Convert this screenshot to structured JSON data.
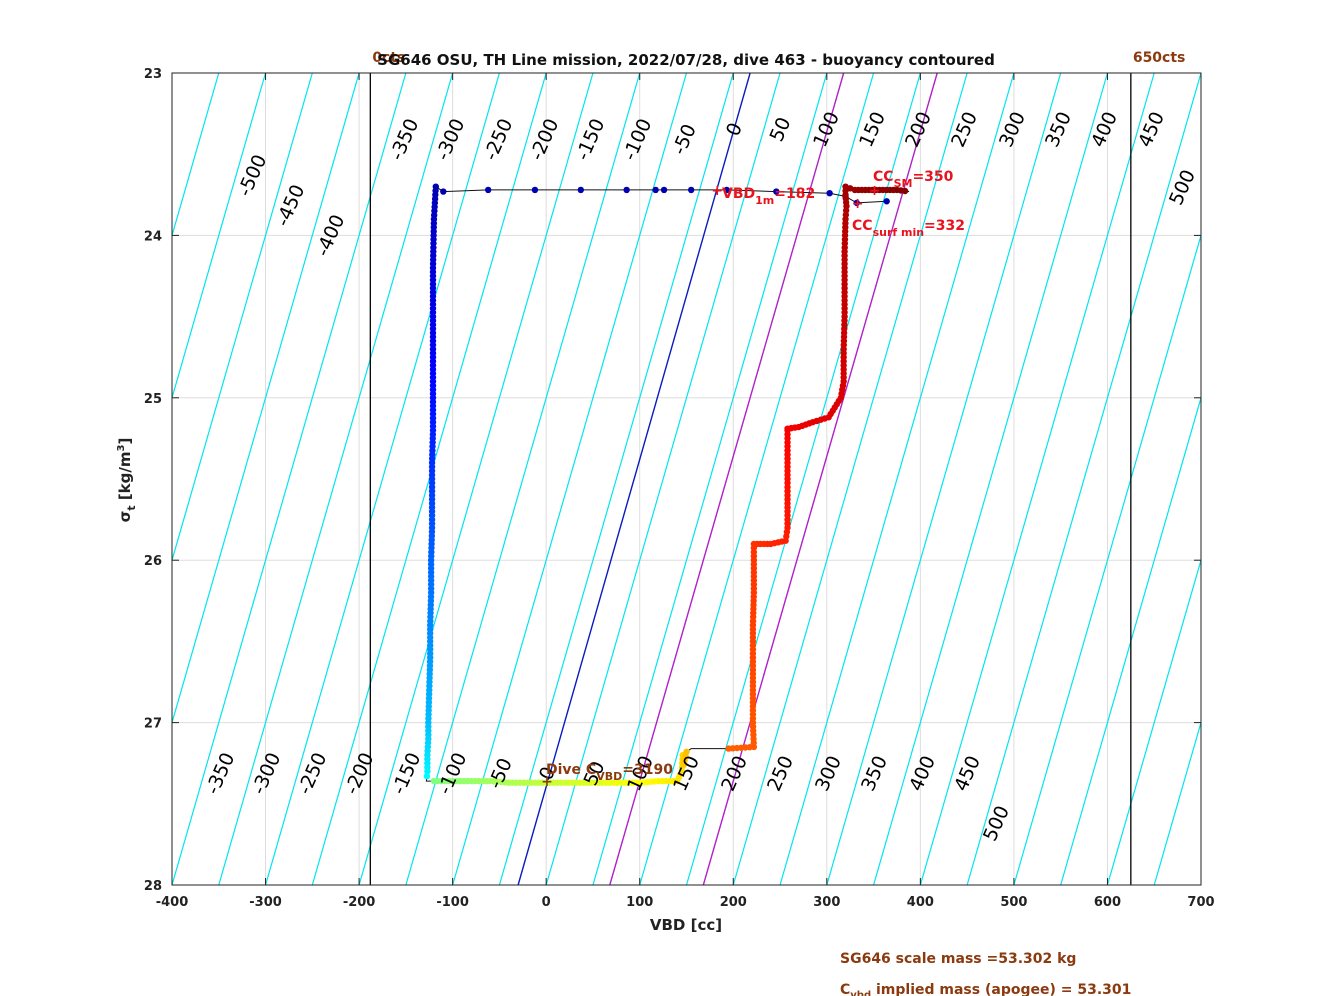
{
  "chart_data": {
    "type": "scatter",
    "title": "SG646 OSU, TH Line mission, 2022/07/28, dive 463 - buoyancy contoured",
    "xlabel": "VBD [cc]",
    "ylabel_main": "σ",
    "ylabel_sub": "t",
    "ylabel_unit_a": " [kg/m",
    "ylabel_unit_sup": "3",
    "ylabel_unit_b": "]",
    "xlim": [
      -400,
      700
    ],
    "ylim": [
      23,
      28
    ],
    "y_reversed": true,
    "grid": true,
    "xticks": [
      -400,
      -300,
      -200,
      -100,
      0,
      100,
      200,
      300,
      400,
      500,
      600,
      700
    ],
    "yticks": [
      23,
      24,
      25,
      26,
      27,
      28
    ],
    "xtick_labels": [
      "-400",
      "-300",
      "-200",
      "-100",
      "0",
      "100",
      "200",
      "300",
      "400",
      "500",
      "600",
      "700"
    ],
    "ytick_labels": [
      "23",
      "24",
      "25",
      "26",
      "27",
      "28"
    ],
    "limit_lines": [
      {
        "x": -188,
        "label": "0cts"
      },
      {
        "x": 625,
        "label": "650cts"
      }
    ],
    "contour_levels": [
      -500,
      -450,
      -400,
      -350,
      -300,
      -250,
      -200,
      -150,
      -100,
      -50,
      0,
      50,
      100,
      150,
      200,
      250,
      300,
      350,
      400,
      450,
      500
    ],
    "contour_labels_top": [
      "-500",
      "-450",
      "-400",
      "-350",
      "-300",
      "-250",
      "-200",
      "-150",
      "-100",
      "-50",
      "0",
      "50",
      "100",
      "150",
      "200",
      "250",
      "300",
      "350",
      "400",
      "450",
      "500"
    ],
    "contour_labels_bottom": [
      "-350",
      "-300",
      "-250",
      "-200",
      "-150",
      "-100",
      "-50",
      "0",
      "50",
      "100",
      "150",
      "200",
      "250",
      "300",
      "350",
      "400",
      "450",
      "500"
    ],
    "reference_lines": [
      {
        "color": "#0a1bbf",
        "x_top": 218,
        "x_bottom": -30
      },
      {
        "color": "#b020c8",
        "x_top": 318,
        "x_bottom": 68
      },
      {
        "color": "#b020c8",
        "x_top": 418,
        "x_bottom": 168
      }
    ],
    "descent_profile": {
      "x": [
        -118,
        -120,
        -121,
        -121,
        -121,
        -121,
        -121,
        -122,
        -122,
        -122,
        -123,
        -123,
        -124,
        -124,
        -125,
        -126,
        -126,
        -127,
        -127,
        -128
      ],
      "y": [
        23.7,
        23.9,
        24.2,
        24.5,
        24.8,
        25.0,
        25.2,
        25.4,
        25.6,
        25.8,
        26.0,
        26.2,
        26.4,
        26.6,
        26.8,
        27.0,
        27.1,
        27.2,
        27.3,
        27.36
      ]
    },
    "surface_points": {
      "x": [
        -110,
        -62,
        -12,
        37,
        86,
        117,
        126,
        155,
        193,
        246,
        303,
        320,
        332,
        364
      ],
      "y": [
        23.73,
        23.72,
        23.72,
        23.72,
        23.72,
        23.72,
        23.72,
        23.72,
        23.72,
        23.73,
        23.74,
        23.76,
        23.8,
        23.79
      ]
    },
    "bottom_points": {
      "x": [
        -120,
        -100,
        -80,
        -60,
        -40,
        -20,
        0,
        20,
        40,
        60,
        80,
        100,
        120,
        140,
        145,
        146,
        147,
        150,
        155
      ],
      "y": [
        27.36,
        27.36,
        27.36,
        27.36,
        27.37,
        27.37,
        27.37,
        27.37,
        27.37,
        27.37,
        27.37,
        27.37,
        27.36,
        27.36,
        27.3,
        27.2,
        27.26,
        27.18,
        27.16
      ]
    },
    "ascent_profile": {
      "x": [
        195,
        222,
        221,
        221,
        221,
        221,
        222,
        222,
        229,
        240,
        256,
        258,
        258,
        258,
        258,
        258,
        258,
        270,
        285,
        302,
        315,
        318,
        318,
        319,
        319,
        319,
        320,
        321,
        320,
        320,
        330,
        345,
        360,
        375,
        388
      ],
      "y": [
        27.16,
        27.15,
        27.0,
        26.8,
        26.6,
        26.4,
        26.2,
        25.9,
        25.9,
        25.9,
        25.88,
        25.8,
        25.6,
        25.4,
        25.3,
        25.2,
        25.19,
        25.18,
        25.15,
        25.12,
        25.0,
        24.9,
        24.7,
        24.5,
        24.3,
        24.1,
        23.9,
        23.82,
        23.75,
        23.7,
        23.72,
        23.72,
        23.72,
        23.72,
        23.73
      ]
    },
    "annotations": [
      {
        "id": "vbd1m",
        "text_main": "VBD",
        "text_sub": "1m",
        "text_tail": "=182",
        "x": 182,
        "y": 23.72,
        "color": "#e8131d"
      },
      {
        "id": "ccsm",
        "text_main": "CC",
        "text_sub": "SM",
        "text_tail": "=350",
        "x": 350,
        "y": 23.72,
        "color": "#e8131d"
      },
      {
        "id": "ccsurf",
        "text_main": "CC",
        "text_sub": "surf min",
        "text_tail": "=332",
        "x": 332,
        "y": 23.8,
        "color": "#e8131d"
      },
      {
        "id": "dive",
        "text_main": "Dive C",
        "text_sub": "VBD",
        "text_tail": "=3190",
        "x": 0,
        "y": 27.36,
        "color": "#8b3a0f"
      }
    ]
  },
  "footer": {
    "scale_mass": "SG646 scale mass =53.302 kg",
    "implied_mass_main": "C",
    "implied_mass_sub": "vbd",
    "implied_mass_tail": " implied mass (apogee) = 53.301"
  }
}
